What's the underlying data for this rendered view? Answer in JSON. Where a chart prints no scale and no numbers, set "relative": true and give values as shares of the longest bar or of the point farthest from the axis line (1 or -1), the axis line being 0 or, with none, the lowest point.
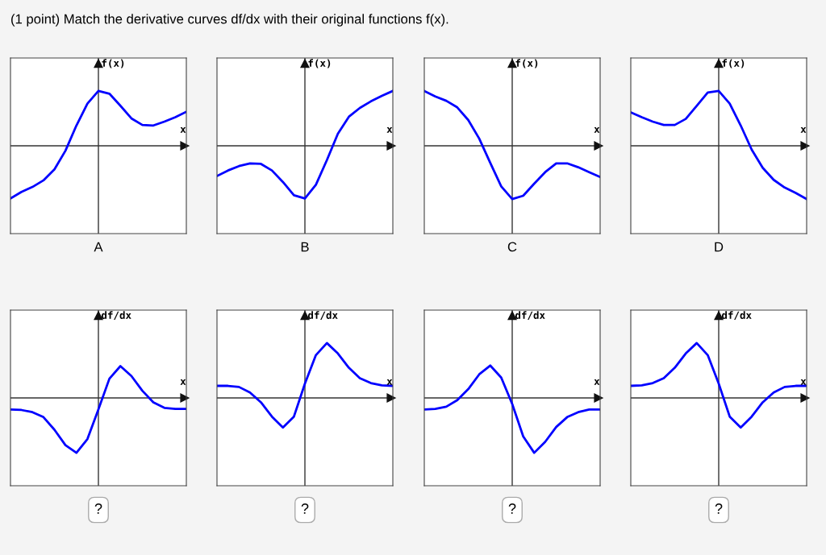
{
  "chart_data": [
    {
      "type": "line",
      "relative": true,
      "title": "A",
      "xlabel": "x",
      "ylabel": "f(x)",
      "grid": false,
      "legend": false,
      "marker": "none",
      "line_style": "solid",
      "annotations": [
        "(1 point) Match the derivative curves df/dx with their original functions f(x)."
      ],
      "categories": [
        null,
        null,
        null,
        null,
        null,
        null,
        null,
        null,
        null,
        null,
        null,
        null,
        null,
        null,
        null,
        null,
        null
      ],
      "series": [
        {
          "color": "#0000ff",
          "values": [
            -0.96,
            -0.84,
            -0.75,
            -0.63,
            -0.43,
            -0.09,
            0.37,
            0.77,
            1,
            0.95,
            0.73,
            0.5,
            0.38,
            0.37,
            0.44,
            0.52,
            0.62
          ]
        }
      ]
    },
    {
      "type": "line",
      "relative": true,
      "title": "B",
      "xlabel": "x",
      "ylabel": "f(x)",
      "grid": false,
      "legend": false,
      "marker": "none",
      "line_style": "solid",
      "categories": [
        null,
        null,
        null,
        null,
        null,
        null,
        null,
        null,
        null,
        null,
        null,
        null,
        null,
        null,
        null,
        null,
        null
      ],
      "series": [
        {
          "color": "#0000ff",
          "values": [
            -0.55,
            -0.45,
            -0.37,
            -0.32,
            -0.33,
            -0.45,
            -0.66,
            -0.9,
            -0.96,
            -0.71,
            -0.26,
            0.22,
            0.53,
            0.69,
            0.81,
            0.91,
            1
          ]
        }
      ]
    },
    {
      "type": "line",
      "relative": true,
      "title": "C",
      "xlabel": "x",
      "ylabel": "f(x)",
      "grid": false,
      "legend": false,
      "marker": "none",
      "line_style": "solid",
      "categories": [
        null,
        null,
        null,
        null,
        null,
        null,
        null,
        null,
        null,
        null,
        null,
        null,
        null,
        null,
        null,
        null,
        null
      ],
      "series": [
        {
          "color": "#0000ff",
          "values": [
            1,
            0.9,
            0.82,
            0.7,
            0.47,
            0.13,
            -0.31,
            -0.74,
            -0.97,
            -0.91,
            -0.69,
            -0.48,
            -0.32,
            -0.32,
            -0.39,
            -0.48,
            -0.57
          ]
        }
      ]
    },
    {
      "type": "line",
      "relative": true,
      "title": "D",
      "xlabel": "x",
      "ylabel": "f(x)",
      "grid": false,
      "legend": false,
      "marker": "none",
      "line_style": "solid",
      "categories": [
        null,
        null,
        null,
        null,
        null,
        null,
        null,
        null,
        null,
        null,
        null,
        null,
        null,
        null,
        null,
        null,
        null
      ],
      "series": [
        {
          "color": "#0000ff",
          "values": [
            0.61,
            0.52,
            0.44,
            0.38,
            0.38,
            0.49,
            0.73,
            0.97,
            1,
            0.77,
            0.37,
            -0.07,
            -0.4,
            -0.62,
            -0.76,
            -0.86,
            -0.97
          ]
        }
      ]
    },
    {
      "type": "line",
      "relative": true,
      "xlabel": "x",
      "ylabel": "df/dx",
      "grid": false,
      "legend": false,
      "marker": "none",
      "line_style": "solid",
      "annotations": [
        "?"
      ],
      "categories": [
        null,
        null,
        null,
        null,
        null,
        null,
        null,
        null,
        null,
        null,
        null,
        null,
        null,
        null,
        null,
        null,
        null
      ],
      "series": [
        {
          "color": "#0000ff",
          "values": [
            -0.21,
            -0.22,
            -0.26,
            -0.35,
            -0.58,
            -0.86,
            -1,
            -0.75,
            -0.21,
            0.35,
            0.58,
            0.4,
            0.13,
            -0.08,
            -0.18,
            -0.2,
            -0.2
          ]
        }
      ]
    },
    {
      "type": "line",
      "relative": true,
      "xlabel": "x",
      "ylabel": "df/dx",
      "grid": false,
      "legend": false,
      "marker": "none",
      "line_style": "solid",
      "annotations": [
        "?"
      ],
      "categories": [
        null,
        null,
        null,
        null,
        null,
        null,
        null,
        null,
        null,
        null,
        null,
        null,
        null,
        null,
        null,
        null,
        null
      ],
      "series": [
        {
          "color": "#0000ff",
          "values": [
            0.22,
            0.22,
            0.2,
            0.1,
            -0.08,
            -0.34,
            -0.54,
            -0.34,
            0.26,
            0.78,
            1,
            0.81,
            0.55,
            0.36,
            0.27,
            0.23,
            0.22
          ]
        }
      ]
    },
    {
      "type": "line",
      "relative": true,
      "xlabel": "x",
      "ylabel": "df/dx",
      "grid": false,
      "legend": false,
      "marker": "none",
      "line_style": "solid",
      "annotations": [
        "?"
      ],
      "categories": [
        null,
        null,
        null,
        null,
        null,
        null,
        null,
        null,
        null,
        null,
        null,
        null,
        null,
        null,
        null,
        null,
        null
      ],
      "series": [
        {
          "color": "#0000ff",
          "values": [
            -0.21,
            -0.2,
            -0.16,
            -0.04,
            0.16,
            0.43,
            0.59,
            0.37,
            -0.11,
            -0.7,
            -1,
            -0.8,
            -0.53,
            -0.35,
            -0.26,
            -0.21,
            -0.21
          ]
        }
      ]
    },
    {
      "type": "line",
      "relative": true,
      "xlabel": "x",
      "ylabel": "df/dx",
      "grid": false,
      "legend": false,
      "marker": "none",
      "line_style": "solid",
      "annotations": [
        "?"
      ],
      "categories": [
        null,
        null,
        null,
        null,
        null,
        null,
        null,
        null,
        null,
        null,
        null,
        null,
        null,
        null,
        null,
        null,
        null
      ],
      "series": [
        {
          "color": "#0000ff",
          "values": [
            0.22,
            0.23,
            0.27,
            0.36,
            0.55,
            0.81,
            1,
            0.78,
            0.26,
            -0.34,
            -0.54,
            -0.34,
            -0.08,
            0.1,
            0.2,
            0.22,
            0.22
          ]
        }
      ]
    }
  ]
}
